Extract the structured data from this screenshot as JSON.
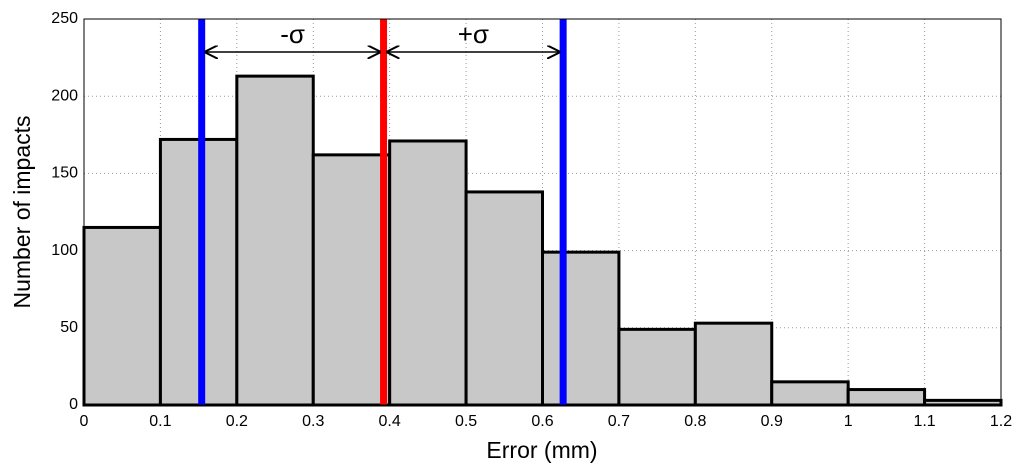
{
  "chart_data": {
    "type": "histogram",
    "x_label": "Error (mm)",
    "y_label": "Number of impacts",
    "bins": [
      0,
      0.1,
      0.2,
      0.3,
      0.4,
      0.5,
      0.6,
      0.7,
      0.8,
      0.9,
      1,
      1.1,
      1.2
    ],
    "values": [
      115,
      172,
      213,
      162,
      171,
      138,
      99,
      49,
      53,
      15,
      10,
      3
    ],
    "color": "#c8c8c8",
    "xlim": [
      0,
      1.2
    ],
    "xticks": [
      0,
      0.1,
      0.2,
      0.3,
      0.4,
      0.5,
      0.6,
      0.7,
      0.8,
      0.9,
      1,
      1.1,
      1.2
    ],
    "ylim": [
      0,
      250
    ],
    "yticks": [
      0,
      50,
      100,
      150,
      200,
      250
    ],
    "grid": true,
    "vlines": [
      {
        "x": 0.154,
        "color": "#0000ff"
      },
      {
        "x": 0.392,
        "color": "#ff0000"
      },
      {
        "x": 0.627,
        "color": "#0000ff"
      }
    ],
    "annotations": [
      "-σ",
      "+σ"
    ]
  }
}
